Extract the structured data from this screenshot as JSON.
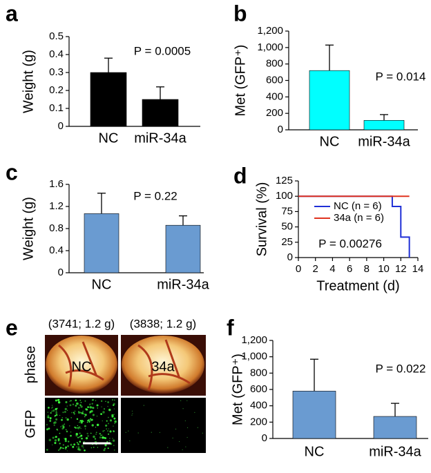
{
  "chart_data": [
    {
      "panel": "a",
      "type": "bar",
      "y_label": "Weight (g)",
      "categories": [
        "NC",
        "miR-34a"
      ],
      "values": [
        0.3,
        0.15
      ],
      "errors": [
        0.08,
        0.07
      ],
      "color": "#000000",
      "ylim": [
        0,
        0.5
      ],
      "yticks": [
        0,
        0.1,
        0.2,
        0.3,
        0.4,
        0.5
      ],
      "annotation": "P = 0.0005"
    },
    {
      "panel": "b",
      "type": "bar",
      "y_label": "Met (GFP⁺)",
      "categories": [
        "NC",
        "miR-34a"
      ],
      "values": [
        720,
        115
      ],
      "errors": [
        310,
        70
      ],
      "color": "#00ffff",
      "ylim": [
        0,
        1200
      ],
      "yticks": [
        0,
        200,
        400,
        600,
        800,
        {
          "value": 1000,
          "label": "1,000"
        },
        {
          "value": 1200,
          "label": "1,200"
        }
      ],
      "annotation": "P = 0.014"
    },
    {
      "panel": "c",
      "type": "bar",
      "y_label": "Weight (g)",
      "categories": [
        "NC",
        "miR-34a"
      ],
      "values": [
        1.07,
        0.86
      ],
      "errors": [
        0.37,
        0.17
      ],
      "color": "#6a9bd1",
      "ylim": [
        0,
        1.6
      ],
      "yticks": [
        0,
        0.4,
        0.8,
        1.2,
        1.6
      ],
      "annotation": "P = 0.22"
    },
    {
      "panel": "d",
      "type": "line",
      "y_label": "Survival (%)",
      "x_label": "Treatment (d)",
      "xlim": [
        0,
        14
      ],
      "xticks": [
        0,
        2,
        4,
        6,
        8,
        10,
        12,
        14
      ],
      "ylim": [
        0,
        125
      ],
      "yticks": [
        0,
        25,
        50,
        75,
        100,
        125
      ],
      "annotation": "P = 0.00276",
      "series": [
        {
          "name": "NC (n = 6)",
          "color": "#1f2fd6",
          "x": [
            0,
            11,
            11,
            12,
            12,
            13,
            13
          ],
          "values": [
            100,
            100,
            83.3,
            83.3,
            33.3,
            33.3,
            0
          ]
        },
        {
          "name": "34a (n = 6)",
          "color": "#e0321e",
          "x": [
            0,
            13
          ],
          "values": [
            100,
            100
          ]
        }
      ]
    },
    {
      "panel": "e",
      "type": "image",
      "rows": [
        "phase",
        "GFP"
      ],
      "columns": [
        {
          "caption": "(3741; 1.2 g)",
          "label": "NC"
        },
        {
          "caption": "(3838; 1.2 g)",
          "label": "34a"
        }
      ]
    },
    {
      "panel": "f",
      "type": "bar",
      "y_label": "Met (GFP⁺)",
      "categories": [
        "NC",
        "miR-34a"
      ],
      "values": [
        580,
        270
      ],
      "errors": [
        390,
        160
      ],
      "color": "#6a9bd1",
      "ylim": [
        0,
        1200
      ],
      "yticks": [
        0,
        200,
        400,
        600,
        800,
        {
          "value": 1000,
          "label": "1,000"
        },
        {
          "value": 1200,
          "label": "1,200"
        }
      ],
      "annotation": "P = 0.022"
    }
  ]
}
